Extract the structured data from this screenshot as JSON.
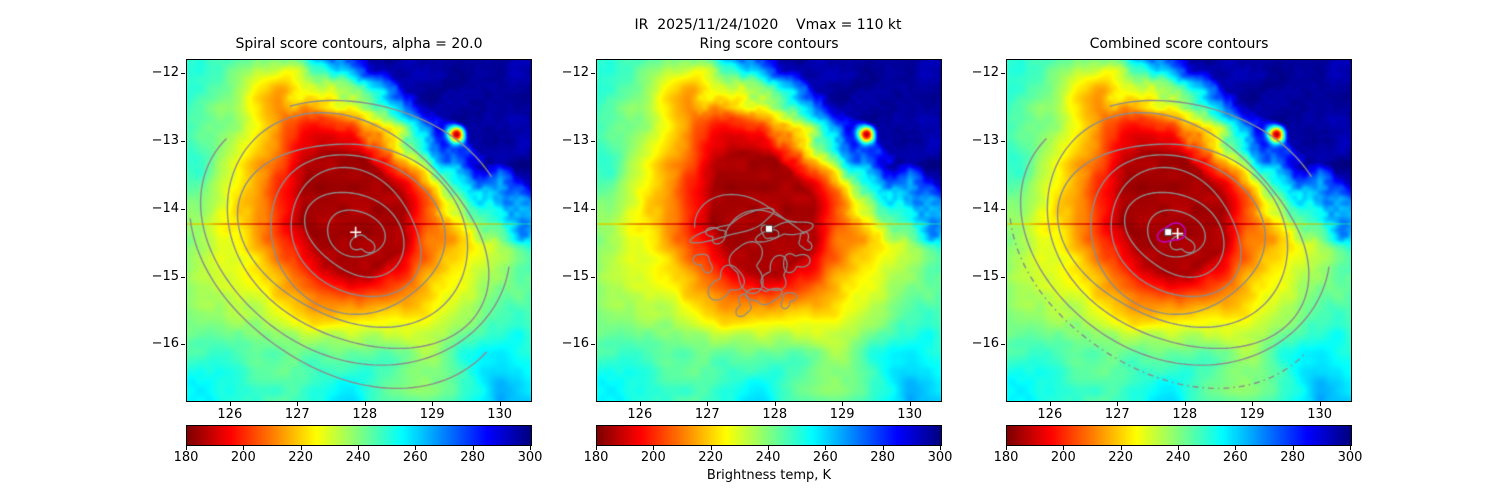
{
  "figure": {
    "suptitle": "IR  2025/11/24/1020    Vmax = 110 kt"
  },
  "panels": [
    {
      "title": "Spiral score contours, alpha = 20.0",
      "contour_type": "spiral",
      "contour_color": "#8c8c8c",
      "markers": [
        {
          "type": "plus",
          "lon": 127.85,
          "lat": -14.33,
          "color": "#ffffff"
        }
      ]
    },
    {
      "title": "Ring score contours",
      "contour_type": "rings",
      "contour_color": "#8c8c8c",
      "markers": [
        {
          "type": "square",
          "lon": 127.9,
          "lat": -14.28,
          "color": "#ffffff"
        }
      ]
    },
    {
      "title": "Combined score contours",
      "contour_type": "combined",
      "contour_color": "#8c8c8c",
      "extra_contour_color": "#bf00bf",
      "markers": [
        {
          "type": "square",
          "lon": 127.74,
          "lat": -14.33,
          "color": "#ffffff"
        },
        {
          "type": "plus",
          "lon": 127.88,
          "lat": -14.35,
          "color": "#ffffff"
        }
      ]
    }
  ],
  "colorbar": {
    "ticks": [
      180,
      200,
      220,
      240,
      260,
      280,
      300
    ],
    "range": [
      180,
      300
    ],
    "label": "Brightness temp, K",
    "colormap": "jet_reversed",
    "left_color": "#8b0000",
    "right_color": "#00008b"
  },
  "chart_data": {
    "type": "heatmap",
    "field": "IR brightness temperature",
    "title": "IR  2025/11/24/1020    Vmax = 110 kt",
    "time": "2025/11/24/1020",
    "vmax_kt": 110,
    "value_range_K": [
      180,
      300
    ],
    "colorbar_ticks_K": [
      180,
      200,
      220,
      240,
      260,
      280,
      300
    ],
    "colorbar_label": "Brightness temp, K",
    "x_axis": {
      "ticks": [
        126,
        127,
        128,
        129,
        130
      ],
      "range": [
        125.35,
        130.45
      ],
      "units": "deg lon"
    },
    "y_axis": {
      "ticks": [
        -12,
        -13,
        -14,
        -15,
        -16
      ],
      "range": [
        -16.82,
        -11.79
      ],
      "units": "deg lat"
    },
    "storm_center": {
      "lon": 127.88,
      "lat": -14.32
    },
    "cold_core_temp_K": 183,
    "warm_corner": "northeast corner clear air near 300 K",
    "secondary_cold_spot": {
      "lon": 129.35,
      "lat": -12.88
    },
    "scanline_lat": -14.21,
    "panel_summaries": [
      "gray spiral-score contours: nested rotated rings growing outward with open spiral arms, white plus at storm center",
      "gray ring-score contours: irregular patches clustered around and south-west of storm center, white square at storm center",
      "gray combined-score spiral contours with dashed outer arc, magenta maximum contour ring, white plus and white square at storm center"
    ]
  }
}
